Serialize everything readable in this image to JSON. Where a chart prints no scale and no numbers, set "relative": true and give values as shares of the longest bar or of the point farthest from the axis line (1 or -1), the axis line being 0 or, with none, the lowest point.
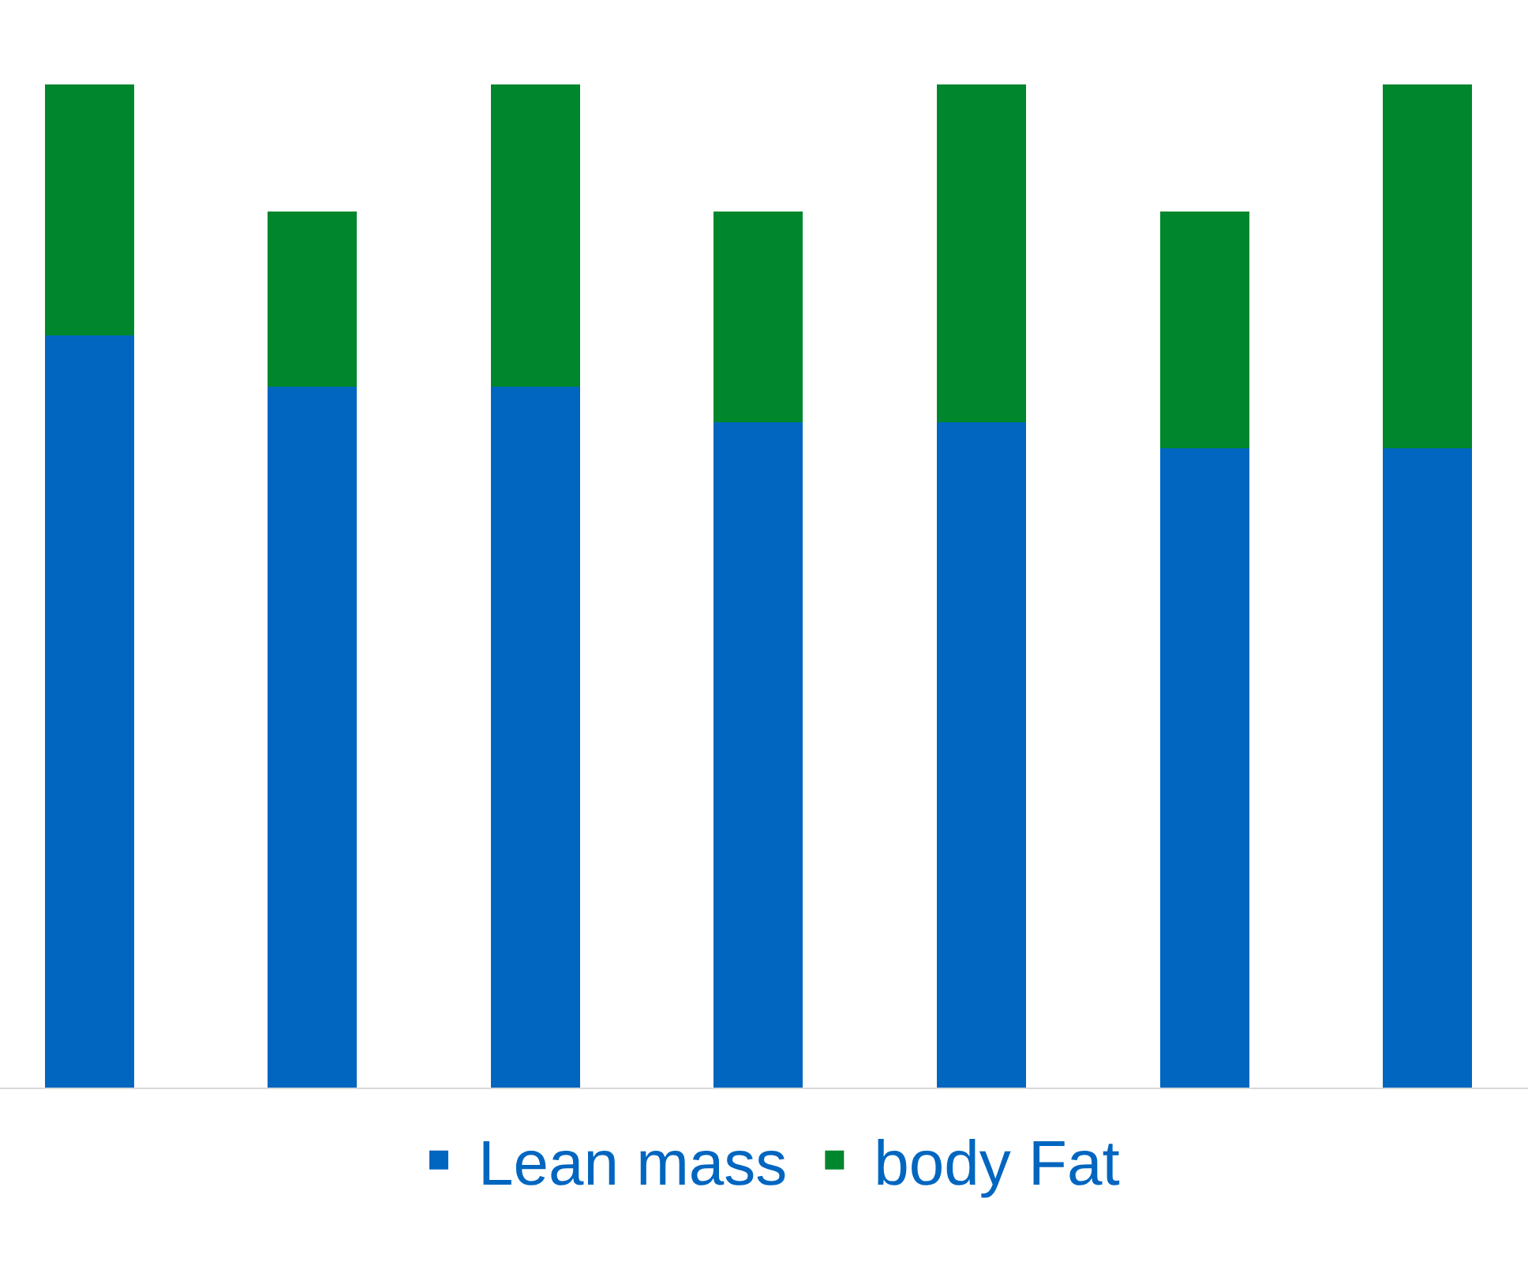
{
  "chart_data": {
    "type": "bar",
    "stacked": true,
    "relative": true,
    "categories": [
      null,
      null,
      null,
      null,
      null,
      null,
      null
    ],
    "legend": "bottom",
    "grid": false,
    "series": [
      {
        "name": "Lean mass",
        "color": "#0066c0",
        "values": [
          0.75,
          0.699,
          0.699,
          0.663,
          0.663,
          0.637,
          0.637
        ]
      },
      {
        "name": "body Fat",
        "color": "#00862c",
        "values": [
          0.25,
          0.174,
          0.301,
          0.21,
          0.337,
          0.236,
          0.363
        ]
      }
    ]
  }
}
